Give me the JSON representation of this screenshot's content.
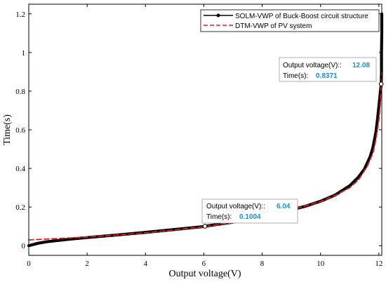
{
  "chart_data": {
    "type": "line",
    "xlabel": "Output voltage(V)",
    "ylabel": "Time(s)",
    "xlim": [
      0,
      12.1
    ],
    "ylim": [
      -0.05,
      1.25
    ],
    "xticks": [
      "0",
      "2",
      "4",
      "6",
      "8",
      "10",
      "12"
    ],
    "yticks": [
      "0",
      "0.2",
      "0.4",
      "0.6",
      "0.8",
      "1",
      "1.2"
    ],
    "grid": false,
    "legend_position": "top-right",
    "series": [
      {
        "name": "SOLM-VWP of Buck-Boost circuit structure",
        "color": "#000000",
        "style": "solid-thick",
        "x": [
          0,
          0.3,
          0.6,
          1,
          1.5,
          2,
          3,
          4,
          5,
          6,
          6.04,
          7,
          8,
          9,
          9.5,
          10,
          10.5,
          11,
          11.3,
          11.5,
          11.7,
          11.8,
          11.9,
          11.95,
          12,
          12.04,
          12.08,
          12.09,
          12.09,
          12.1,
          12.1
        ],
        "y": [
          0,
          0.012,
          0.02,
          0.027,
          0.035,
          0.042,
          0.055,
          0.069,
          0.084,
          0.099,
          0.1004,
          0.122,
          0.15,
          0.186,
          0.205,
          0.23,
          0.262,
          0.31,
          0.355,
          0.395,
          0.46,
          0.51,
          0.59,
          0.65,
          0.72,
          0.78,
          0.8371,
          0.9,
          1.0,
          1.1,
          1.2
        ]
      },
      {
        "name": "DTM-VWP of PV system",
        "color": "#e02020",
        "style": "dashed",
        "x": [
          0,
          1,
          2,
          3,
          4,
          5,
          6,
          7,
          8,
          9,
          10,
          10.5,
          11,
          11.3,
          11.6,
          11.8,
          11.9,
          12,
          12.05,
          12.08,
          12.1
        ],
        "y": [
          0.03,
          0.037,
          0.045,
          0.055,
          0.067,
          0.082,
          0.098,
          0.12,
          0.15,
          0.186,
          0.228,
          0.26,
          0.3,
          0.34,
          0.41,
          0.48,
          0.55,
          0.65,
          0.73,
          0.82,
          0.9
        ]
      }
    ],
    "datatips": [
      {
        "x": 6.04,
        "y": 0.1004,
        "label_x": "Output voltage(V)::",
        "value_x": "6.04",
        "label_y": "Time(s):",
        "value_y": "0.1004"
      },
      {
        "x": 12.08,
        "y": 0.8371,
        "label_x": "Output voltage(V)::",
        "value_x": "12.08",
        "label_y": "Time(s):",
        "value_y": "0.8371"
      }
    ]
  }
}
